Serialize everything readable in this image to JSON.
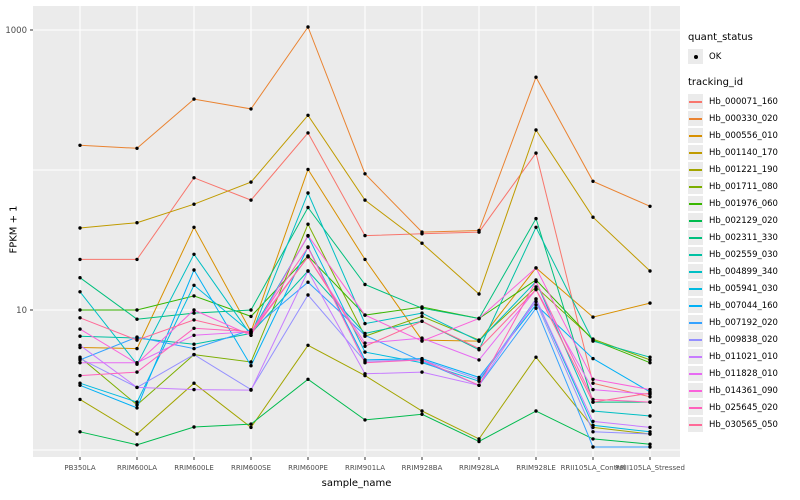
{
  "axes": {
    "y_title": "FPKM + 1",
    "x_title": "sample_name",
    "y_tick_labels": [
      "1000",
      "10"
    ]
  },
  "legend": {
    "quant_status_title": "quant_status",
    "ok_label": "OK",
    "tracking_id_title": "tracking_id"
  },
  "colors": {
    "panel_background": "#ebebeb",
    "gridline": "#ffffff",
    "point": "#000000",
    "tick": "#333333",
    "tick_label": "#4d4d4d",
    "legend_key_background": "#ebebeb"
  },
  "chart_data": {
    "type": "line",
    "title": "",
    "xlabel": "sample_name",
    "ylabel": "FPKM + 1",
    "y_scale": "log10",
    "ylim": [
      1,
      1480
    ],
    "y_major_gridlines": [
      1,
      10,
      100,
      1000
    ],
    "y_tick_values": [
      1000,
      10
    ],
    "grid": true,
    "legend_position": "right",
    "point_marker": "black dot (quant_status = OK at every data point)",
    "categories": [
      "PB350LA",
      "RRIM600LA",
      "RRIM600LE",
      "RRIM600SE",
      "RRIM600PE",
      "RRIM901LA",
      "RRIM928BA",
      "RRIM928LA",
      "RRIM928LE",
      "RRII105LA_Control",
      "RRII105LA_Stressed"
    ],
    "series": [
      {
        "name": "Hb_000071_160",
        "color": "#F8766D",
        "values": [
          23,
          23,
          88,
          61,
          184,
          34,
          35,
          36,
          132,
          3.0,
          2.4
        ]
      },
      {
        "name": "Hb_000330_020",
        "color": "#EA8331",
        "values": [
          150,
          143,
          321,
          273,
          1050,
          94,
          36,
          37,
          460,
          83,
          55
        ]
      },
      {
        "name": "Hb_000556_010",
        "color": "#D89000",
        "values": [
          5.4,
          5.3,
          39,
          7.0,
          101,
          23,
          6.1,
          6.0,
          20,
          8.9,
          11.2
        ]
      },
      {
        "name": "Hb_001140_170",
        "color": "#C09B00",
        "values": [
          38.5,
          42,
          57,
          82,
          246,
          61,
          30,
          13,
          193,
          46,
          19
        ]
      },
      {
        "name": "Hb_001221_190",
        "color": "#A3A500",
        "values": [
          2.3,
          1.3,
          3.0,
          1.45,
          5.6,
          3.4,
          1.9,
          1.2,
          4.6,
          1.45,
          1.3
        ]
      },
      {
        "name": "Hb_001711_080",
        "color": "#7CAE00",
        "values": [
          4.6,
          2.1,
          4.8,
          4.25,
          41,
          6.5,
          9.0,
          6.1,
          14.6,
          6.2,
          4.4
        ]
      },
      {
        "name": "Hb_001976_060",
        "color": "#39B600",
        "values": [
          10,
          10,
          12.6,
          9.0,
          24.3,
          9.2,
          10.5,
          8.7,
          16.4,
          6.1,
          4.2
        ]
      },
      {
        "name": "Hb_002129_020",
        "color": "#00BB4E",
        "values": [
          1.35,
          1.09,
          1.46,
          1.53,
          3.2,
          1.64,
          1.8,
          1.15,
          1.9,
          1.2,
          1.1
        ]
      },
      {
        "name": "Hb_002311_330",
        "color": "#00BF7D",
        "values": [
          17,
          8.6,
          9.5,
          10,
          54,
          15.2,
          10.3,
          8.7,
          45,
          2.2,
          2.2
        ]
      },
      {
        "name": "Hb_002559_030",
        "color": "#00C1A3",
        "values": [
          6.5,
          6.3,
          5.7,
          6.8,
          19,
          6.8,
          8.3,
          5.2,
          39,
          6.0,
          4.6
        ]
      },
      {
        "name": "Hb_004899_340",
        "color": "#00BFC4",
        "values": [
          13.5,
          4.1,
          25,
          6.6,
          68.5,
          8.0,
          9.5,
          6.0,
          16,
          1.9,
          1.75
        ]
      },
      {
        "name": "Hb_005941_030",
        "color": "#00BAE0",
        "values": [
          3.0,
          2.2,
          15,
          6.9,
          33.8,
          5.0,
          4.2,
          3.1,
          12,
          1.5,
          1.35
        ]
      },
      {
        "name": "Hb_007044_160",
        "color": "#00B0F6",
        "values": [
          2.9,
          2.0,
          19.3,
          4.0,
          28.2,
          4.4,
          4.5,
          3.3,
          10.9,
          4.5,
          2.6
        ]
      },
      {
        "name": "Hb_007192_020",
        "color": "#35A2FF",
        "values": [
          4.4,
          6.4,
          5.3,
          7.2,
          15.8,
          6.6,
          4.3,
          2.9,
          10.3,
          1.05,
          1.05
        ]
      },
      {
        "name": "Hb_009838_020",
        "color": "#9590FF",
        "values": [
          4.5,
          2.8,
          4.8,
          2.7,
          12.8,
          4.3,
          4.4,
          3.2,
          11.5,
          1.35,
          1.3
        ]
      },
      {
        "name": "Hb_011021_010",
        "color": "#C77CFF",
        "values": [
          5.6,
          2.8,
          2.7,
          2.68,
          19,
          3.5,
          3.6,
          2.9,
          12,
          1.6,
          1.45
        ]
      },
      {
        "name": "Hb_011828_010",
        "color": "#E76BF3",
        "values": [
          4.2,
          4.2,
          6.6,
          7.0,
          24,
          5.8,
          6.3,
          4.4,
          14,
          2.7,
          2.5
        ]
      },
      {
        "name": "Hb_014361_090",
        "color": "#FA62DB",
        "values": [
          7.3,
          4.15,
          10,
          6.6,
          34,
          9.2,
          6.0,
          8.7,
          20,
          3.2,
          2.7
        ]
      },
      {
        "name": "Hb_025645_020",
        "color": "#FF62BC",
        "values": [
          3.4,
          3.6,
          7.4,
          7.0,
          28,
          4.2,
          4.4,
          2.9,
          16,
          2.3,
          2.2
        ]
      },
      {
        "name": "Hb_030565_050",
        "color": "#FF6A98",
        "values": [
          8.8,
          6.1,
          8.5,
          6.8,
          24,
          5.5,
          8.3,
          5.3,
          14,
          2.2,
          2.55
        ]
      }
    ]
  }
}
